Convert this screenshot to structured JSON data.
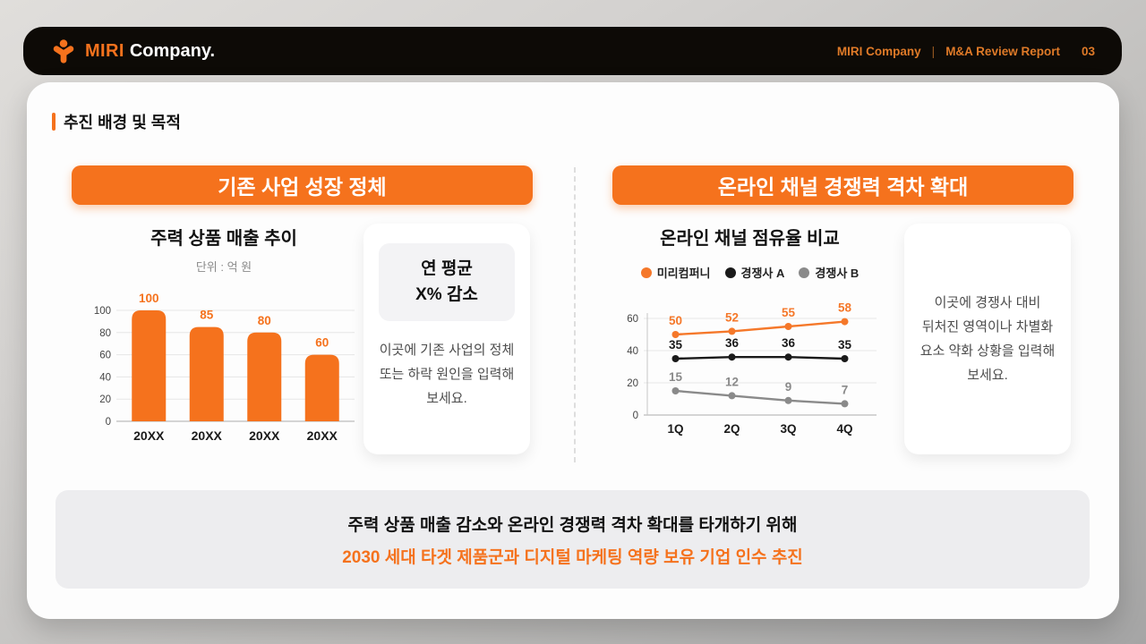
{
  "header": {
    "logo_text_primary": "MIRI",
    "logo_text_secondary": "Company.",
    "meta_company": "MIRI Company",
    "meta_divider": "|",
    "meta_report": "M&A Review Report",
    "page_number": "03"
  },
  "section": {
    "title": "추진 배경 및 목적"
  },
  "left_panel": {
    "header": "기존 사업 성장 정체",
    "chart_title": "주력 상품 매출 추이",
    "chart_unit": "단위 : 억 원",
    "note_card": {
      "stat_line1": "연 평균",
      "stat_line2": "X% 감소",
      "body": "이곳에 기존 사업의 정체 또는 하락 원인을 입력해 보세요."
    }
  },
  "right_panel": {
    "header": "온라인 채널 경쟁력 격차 확대",
    "chart_title": "온라인 채널 점유율 비교",
    "note_card": {
      "body": "이곳에 경쟁사 대비 뒤처진 영역이나 차별화 요소 약화 상황을 입력해 보세요."
    }
  },
  "summary": {
    "line1": "주력 상품 매출 감소와 온라인 경쟁력 격차 확대를 타개하기 위해",
    "line2": "2030 세대 타겟 제품군과 디지털 마케팅 역량 보유 기업 인수 추진"
  },
  "colors": {
    "accent": "#f5721d",
    "header_bg": "#0d0a06",
    "header_meta_text": "#df7a28",
    "card_bg": "#fdfdfd",
    "summary_bg": "#ededef",
    "stat_box_bg": "#f3f3f5",
    "grid_line": "#e6e6e6",
    "axis_line": "#c7c7c7"
  },
  "chart_data": [
    {
      "type": "bar",
      "title": "주력 상품 매출 추이",
      "unit_label": "단위 : 억 원",
      "categories": [
        "20XX",
        "20XX",
        "20XX",
        "20XX"
      ],
      "values": [
        100,
        85,
        80,
        60
      ],
      "ylim": [
        0,
        100
      ],
      "yticks": [
        0,
        20,
        40,
        60,
        80,
        100
      ],
      "bar_color": "#f5721d",
      "grid": true,
      "value_labels": true
    },
    {
      "type": "line",
      "title": "온라인 채널 점유율 비교",
      "categories": [
        "1Q",
        "2Q",
        "3Q",
        "4Q"
      ],
      "series": [
        {
          "name": "미리컴퍼니",
          "color": "#f5782a",
          "values": [
            50,
            52,
            55,
            58
          ]
        },
        {
          "name": "경쟁사 A",
          "color": "#1a1a1a",
          "values": [
            35,
            36,
            36,
            35
          ]
        },
        {
          "name": "경쟁사 B",
          "color": "#8a8a8a",
          "values": [
            15,
            12,
            9,
            7
          ]
        }
      ],
      "ylim": [
        0,
        60
      ],
      "yticks": [
        0,
        20,
        40,
        60
      ],
      "grid": true,
      "legend_position": "top",
      "value_labels": true
    }
  ]
}
